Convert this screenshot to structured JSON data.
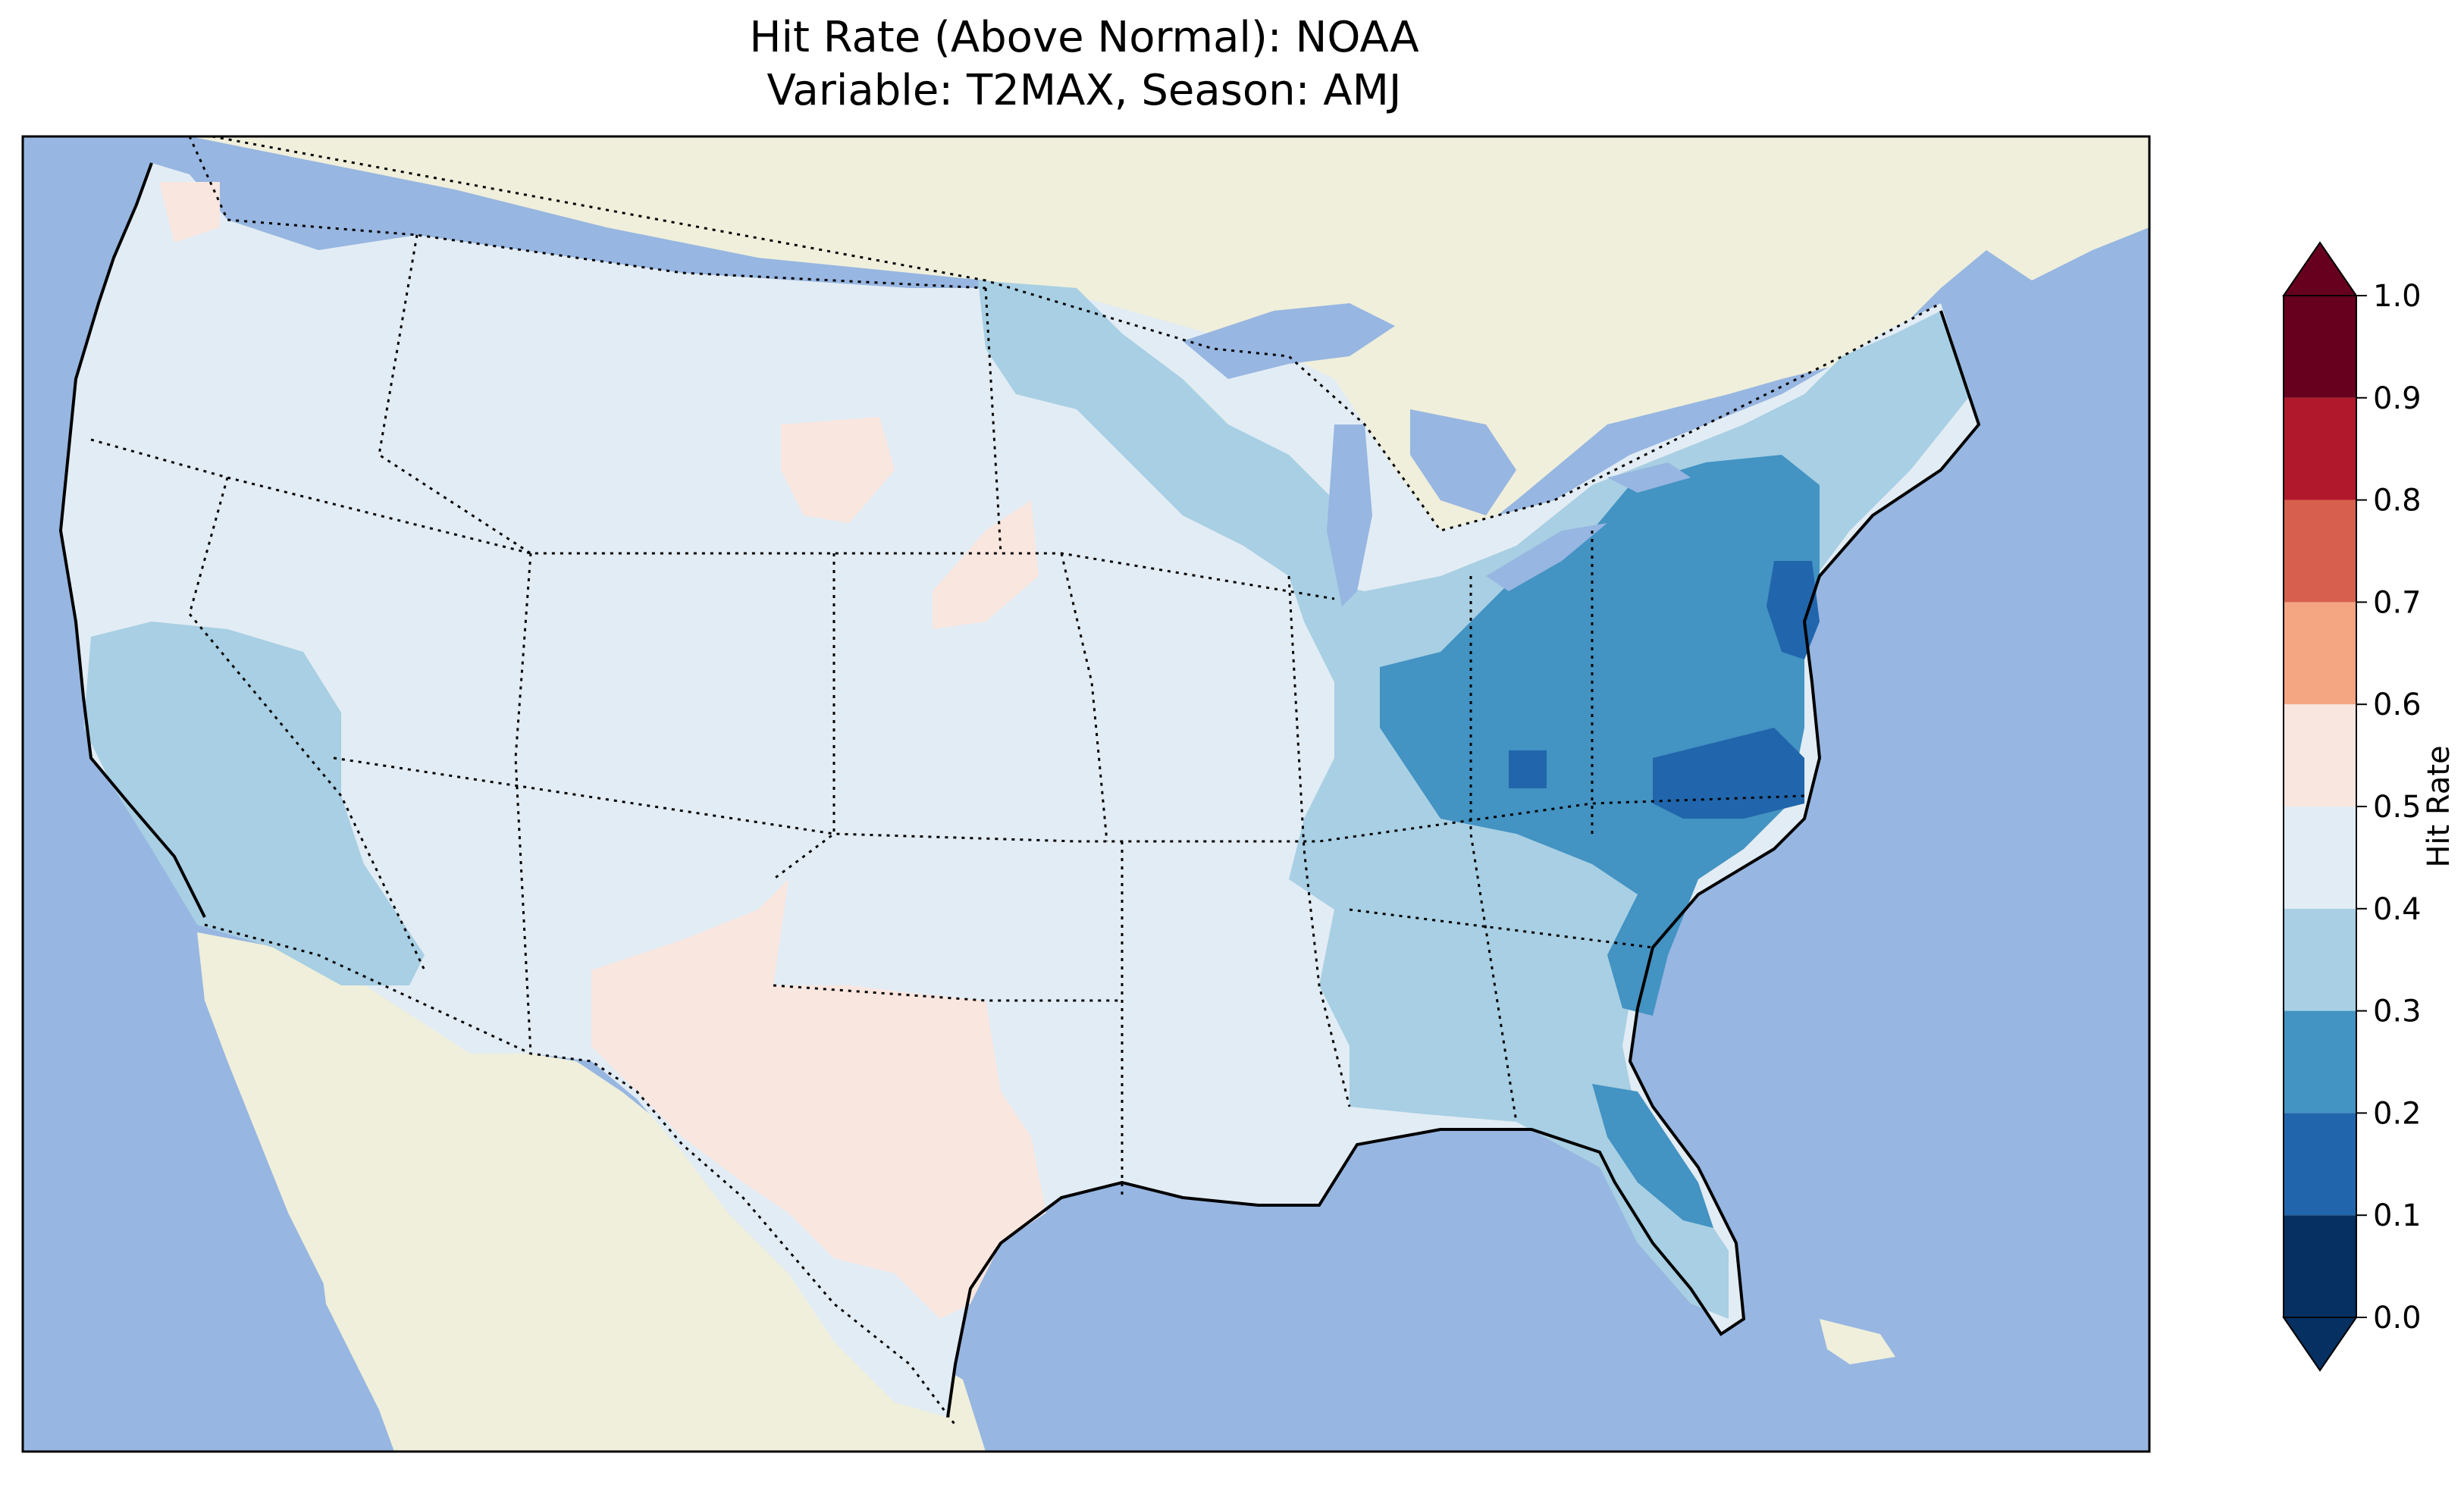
{
  "title": {
    "line1": "Hit Rate (Above Normal): NOAA",
    "line2": "Variable: T2MAX, Season: AMJ"
  },
  "colors": {
    "ocean": "#97b6e1",
    "land": "#efefdb",
    "coast": "#000000"
  },
  "colorbar": {
    "label": "Hit Rate",
    "ticks": [
      "0.0",
      "0.1",
      "0.2",
      "0.3",
      "0.4",
      "0.5",
      "0.6",
      "0.7",
      "0.8",
      "0.9",
      "1.0"
    ],
    "bins": [
      {
        "range": [
          0.0,
          0.1
        ],
        "color": "#053061"
      },
      {
        "range": [
          0.1,
          0.2
        ],
        "color": "#2166ac"
      },
      {
        "range": [
          0.2,
          0.3
        ],
        "color": "#4393c3"
      },
      {
        "range": [
          0.3,
          0.4
        ],
        "color": "#a8cfe3"
      },
      {
        "range": [
          0.4,
          0.5
        ],
        "color": "#e2ecf4"
      },
      {
        "range": [
          0.5,
          0.6
        ],
        "color": "#f9e6df"
      },
      {
        "range": [
          0.6,
          0.7
        ],
        "color": "#f4a582"
      },
      {
        "range": [
          0.7,
          0.8
        ],
        "color": "#d6604d"
      },
      {
        "range": [
          0.8,
          0.9
        ],
        "color": "#b2182b"
      },
      {
        "range": [
          0.9,
          1.0
        ],
        "color": "#67001f"
      }
    ],
    "extend": "both"
  },
  "regions": [
    {
      "name": "contiguous-us-baseline",
      "bin": "0.4-0.5"
    },
    {
      "name": "southeast-mid-atlantic",
      "bin": "0.3-0.4"
    },
    {
      "name": "appalachian-ohio-valley",
      "bin": "0.2-0.3"
    },
    {
      "name": "new-jersey-virginia-nc-core",
      "bin": "0.1-0.2"
    },
    {
      "name": "upper-midwest-minnesota",
      "bin": "0.3-0.4"
    },
    {
      "name": "new-england",
      "bin": "0.3-0.4"
    },
    {
      "name": "california-nevada",
      "bin": "0.3-0.4"
    },
    {
      "name": "texas-new-mexico",
      "bin": "0.5-0.6"
    },
    {
      "name": "south-dakota-nebraska",
      "bin": "0.5-0.6"
    },
    {
      "name": "florida-peninsula",
      "bin": "0.2-0.4"
    }
  ]
}
